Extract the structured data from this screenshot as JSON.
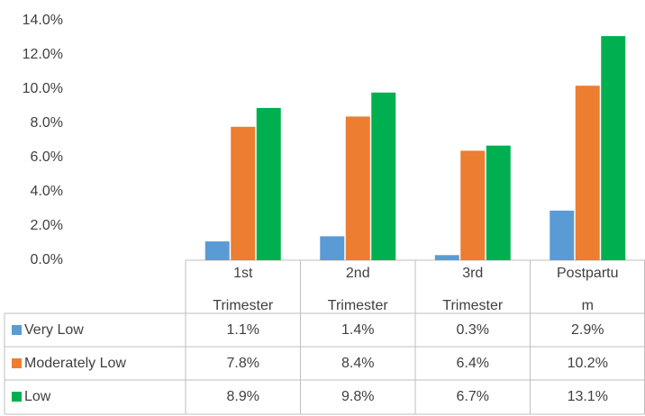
{
  "chart_data": {
    "type": "bar",
    "categories": [
      "1st Trimester",
      "2nd Trimester",
      "3rd Trimester",
      "Postpartum"
    ],
    "series": [
      {
        "name": "Very Low",
        "color": "#5b9bd5",
        "values": [
          1.1,
          1.4,
          0.3,
          2.9
        ],
        "value_labels": [
          "1.1%",
          "1.4%",
          "0.3%",
          "2.9%"
        ]
      },
      {
        "name": "Moderately Low",
        "color": "#ed7d31",
        "values": [
          7.8,
          8.4,
          6.4,
          10.2
        ],
        "value_labels": [
          "7.8%",
          "8.4%",
          "6.4%",
          "10.2%"
        ]
      },
      {
        "name": "Low",
        "color": "#00b050",
        "values": [
          8.9,
          9.8,
          6.7,
          13.1
        ],
        "value_labels": [
          "8.9%",
          "9.8%",
          "6.7%",
          "13.1%"
        ]
      }
    ],
    "ylim": [
      0,
      14
    ],
    "yticks": [
      {
        "value": 0,
        "label": "0.0%"
      },
      {
        "value": 2,
        "label": "2.0%"
      },
      {
        "value": 4,
        "label": "4.0%"
      },
      {
        "value": 6,
        "label": "6.0%"
      },
      {
        "value": 8,
        "label": "8.0%"
      },
      {
        "value": 10,
        "label": "10.0%"
      },
      {
        "value": 12,
        "label": "12.0%"
      },
      {
        "value": 14,
        "label": "14.0%"
      }
    ],
    "grid": false
  }
}
